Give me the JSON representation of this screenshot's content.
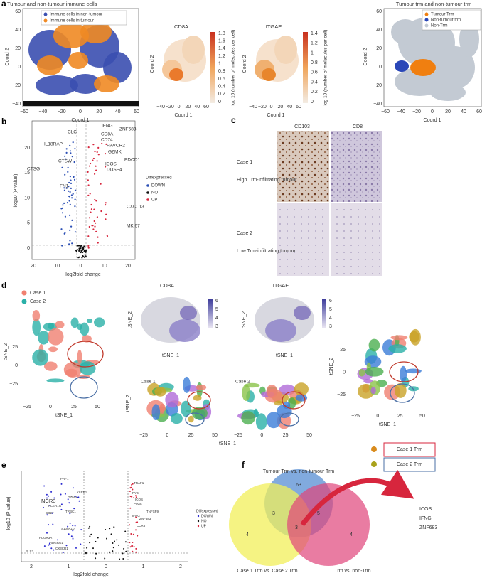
{
  "panel_a": {
    "label": "a",
    "left": {
      "title": "Tumour and non-tumour immune cells",
      "legend": [
        "Immune cells in non-tumour",
        "Immune cells in tumour"
      ],
      "x_label": "Coord 1",
      "y_label": "Coord 2",
      "xticks": [
        "−60",
        "−40",
        "−20",
        "0",
        "20",
        "40",
        "60"
      ],
      "yticks": [
        "60",
        "40",
        "20",
        "0",
        "−20",
        "−40"
      ]
    },
    "cd8a": {
      "title": "CD8A",
      "x_label": "Coord 1",
      "y_label": "Coord 2",
      "xticks": [
        "−40",
        "−20",
        "0",
        "20",
        "40",
        "60"
      ],
      "colorbar_ticks": [
        "1.8",
        "1.6",
        "1.4",
        "1.2",
        "1",
        "0.8",
        "0.6",
        "0.4",
        "0.2",
        "0"
      ],
      "colorbar_label": "log 10 (number of molecules per cell)"
    },
    "itgae": {
      "title": "ITGAE",
      "x_label": "Coord 1",
      "y_label": "Coord 2",
      "xticks": [
        "−40",
        "−20",
        "0",
        "20",
        "40",
        "60"
      ],
      "colorbar_ticks": [
        "1.4",
        "1.2",
        "1",
        "0.8",
        "0.6",
        "0.4",
        "0.2",
        "0"
      ],
      "colorbar_label": "log 10 (number of molecules per cell)"
    },
    "right": {
      "title": "Tumour trm and non-tumour trm",
      "legend": [
        "Tumour Trm",
        "Non-tumour trm",
        "Non-Trm"
      ],
      "x_label": "Coord 1",
      "y_label": "Coord 2",
      "xticks": [
        "−60",
        "−40",
        "−20",
        "0",
        "20",
        "40",
        "60"
      ],
      "yticks": [
        "60",
        "40",
        "20",
        "0",
        "−20",
        "−40"
      ]
    }
  },
  "panel_b": {
    "label": "b",
    "x_label": "log2fold change",
    "y_label": "log10 (P value)",
    "xticks": [
      "20",
      "10",
      "0",
      "10",
      "20"
    ],
    "yticks": [
      "20",
      "15",
      "10",
      "5",
      "0"
    ],
    "legend_title": "Diffexpressed",
    "legend": [
      "DOWN",
      "NO",
      "UP"
    ],
    "up_genes": [
      "IFNG",
      "ZNF683",
      "CD8A",
      "CD74",
      "HAVCR2",
      "GZMK",
      "PDCD1",
      "ICOS",
      "DUSP4",
      "CXCL13",
      "MKI67"
    ],
    "down_genes": [
      "CLC",
      "IL18RAP",
      "CTSW",
      "CTSG",
      "FN1"
    ]
  },
  "panel_c": {
    "label": "c",
    "columns": [
      "CD103",
      "CD8"
    ],
    "rows": [
      {
        "case": "Case 1",
        "description": "High Trm-infiltrating tumour"
      },
      {
        "case": "Case 2",
        "description": "Low Trm-infiltrating tumour"
      }
    ]
  },
  "panel_d": {
    "label": "d",
    "legend": [
      "Case 1",
      "Case 2"
    ],
    "x_label": "tSNE_1",
    "y_label": "tSNE_2",
    "xticks": [
      "−25",
      "0",
      "25",
      "50"
    ],
    "yticks": [
      "25",
      "0",
      "−25"
    ],
    "feature_titles": [
      "CD8A",
      "ITGAE"
    ],
    "colorbar_ticks": [
      "6",
      "5",
      "4",
      "3"
    ],
    "subplot_titles": [
      "Case 1",
      "Case 2"
    ],
    "trm_legend": [
      "Case 1 Trm",
      "Case 2 Trm"
    ]
  },
  "panel_e": {
    "label": "e",
    "x_label": "log2fold change",
    "y_label": "log10 (P value)",
    "xticks": [
      "2",
      "1",
      "0",
      "1",
      "2"
    ],
    "legend_title": "Diffexpressed",
    "legend": [
      "DOWN",
      "NO",
      "UP"
    ],
    "down_genes": [
      "PRF1",
      "KLRB1",
      "NCR3",
      "FCER1G",
      "GZMH",
      "CD27",
      "TRBC1",
      "S100A10",
      "FCGR3A",
      "ADGRG1",
      "CX3CR1",
      "PLS3"
    ],
    "up_genes": [
      "TRAF1",
      "FYB",
      "ICOS",
      "CD69",
      "TNFSF9",
      "IFNG",
      "ZNF683",
      "CCR8"
    ]
  },
  "panel_f": {
    "label": "f",
    "sets": [
      "Tumour Trm vs. non-tumour Trm",
      "Case 1 Trm vs. Case 2 Trm",
      "Trm vs. non-Trm"
    ],
    "counts": [
      "63",
      "3",
      "5",
      "3",
      "4",
      "4"
    ],
    "shared_genes": [
      "ICOS",
      "IFNG",
      "ZNF683"
    ]
  }
}
